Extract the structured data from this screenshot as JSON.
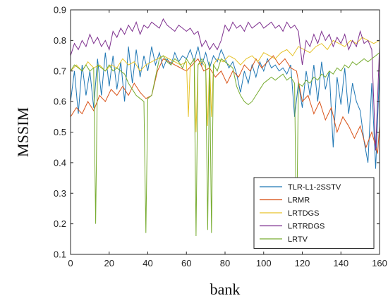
{
  "chart_data": {
    "type": "line",
    "xlabel": "bank",
    "ylabel": "MSSIM",
    "xlim": [
      0,
      160
    ],
    "ylim": [
      0.1,
      0.9
    ],
    "xticks": [
      0,
      20,
      40,
      60,
      80,
      100,
      120,
      140,
      160
    ],
    "yticks": [
      0.1,
      0.2,
      0.3,
      0.4,
      0.5,
      0.6,
      0.7,
      0.8,
      0.9
    ],
    "grid": false,
    "legend_position": "bottom-right",
    "series": [
      {
        "name": "TLR-L1-2SSTV",
        "color": "#1f77b4",
        "x": [
          0,
          2,
          4,
          6,
          8,
          10,
          12,
          14,
          16,
          18,
          20,
          22,
          24,
          26,
          28,
          30,
          32,
          34,
          36,
          38,
          40,
          42,
          44,
          46,
          48,
          50,
          52,
          54,
          56,
          58,
          60,
          62,
          64,
          66,
          68,
          70,
          72,
          74,
          76,
          78,
          80,
          82,
          84,
          86,
          88,
          90,
          92,
          94,
          96,
          98,
          100,
          102,
          104,
          106,
          108,
          110,
          112,
          114,
          116,
          118,
          120,
          122,
          124,
          126,
          128,
          130,
          132,
          134,
          136,
          138,
          140,
          142,
          144,
          146,
          148,
          150,
          152,
          154,
          156,
          158,
          160
        ],
        "values": [
          0.6,
          0.7,
          0.56,
          0.72,
          0.62,
          0.7,
          0.58,
          0.74,
          0.62,
          0.76,
          0.65,
          0.75,
          0.64,
          0.73,
          0.6,
          0.78,
          0.66,
          0.77,
          0.68,
          0.75,
          0.7,
          0.78,
          0.72,
          0.76,
          0.71,
          0.74,
          0.72,
          0.76,
          0.73,
          0.75,
          0.74,
          0.77,
          0.73,
          0.78,
          0.72,
          0.76,
          0.71,
          0.75,
          0.73,
          0.77,
          0.74,
          0.71,
          0.73,
          0.69,
          0.63,
          0.7,
          0.66,
          0.72,
          0.68,
          0.73,
          0.7,
          0.74,
          0.71,
          0.72,
          0.7,
          0.71,
          0.69,
          0.72,
          0.55,
          0.66,
          0.58,
          0.7,
          0.62,
          0.72,
          0.6,
          0.73,
          0.64,
          0.7,
          0.45,
          0.68,
          0.59,
          0.71,
          0.56,
          0.66,
          0.6,
          0.57,
          0.47,
          0.4,
          0.66,
          0.38,
          0.7
        ]
      },
      {
        "name": "LRMR",
        "color": "#d9541a",
        "x": [
          0,
          3,
          6,
          9,
          12,
          15,
          18,
          21,
          24,
          27,
          30,
          33,
          36,
          39,
          42,
          45,
          48,
          51,
          54,
          57,
          60,
          63,
          66,
          69,
          72,
          75,
          78,
          81,
          84,
          87,
          90,
          93,
          96,
          99,
          102,
          105,
          108,
          111,
          114,
          117,
          120,
          123,
          126,
          129,
          132,
          135,
          138,
          141,
          144,
          147,
          150,
          153,
          156,
          159,
          160
        ],
        "values": [
          0.55,
          0.58,
          0.56,
          0.6,
          0.57,
          0.62,
          0.6,
          0.64,
          0.62,
          0.65,
          0.62,
          0.66,
          0.63,
          0.61,
          0.62,
          0.7,
          0.74,
          0.73,
          0.72,
          0.71,
          0.7,
          0.72,
          0.74,
          0.7,
          0.71,
          0.68,
          0.7,
          0.66,
          0.7,
          0.68,
          0.72,
          0.7,
          0.74,
          0.71,
          0.73,
          0.75,
          0.72,
          0.74,
          0.71,
          0.7,
          0.6,
          0.62,
          0.56,
          0.6,
          0.54,
          0.58,
          0.5,
          0.55,
          0.52,
          0.48,
          0.52,
          0.45,
          0.5,
          0.43,
          0.52
        ]
      },
      {
        "name": "LRTDGS",
        "color": "#e6c229",
        "x": [
          0,
          3,
          6,
          9,
          12,
          15,
          18,
          21,
          24,
          27,
          30,
          33,
          36,
          39,
          42,
          45,
          48,
          51,
          54,
          57,
          60,
          61,
          62,
          64,
          65,
          66,
          68,
          70,
          71,
          72,
          73,
          74,
          76,
          79,
          82,
          85,
          88,
          91,
          94,
          97,
          100,
          103,
          106,
          109,
          112,
          115,
          118,
          121,
          124,
          127,
          130,
          133,
          136,
          139,
          142,
          145,
          148,
          151,
          154,
          157,
          160
        ],
        "values": [
          0.7,
          0.72,
          0.7,
          0.73,
          0.71,
          0.72,
          0.7,
          0.72,
          0.71,
          0.74,
          0.72,
          0.73,
          0.7,
          0.72,
          0.73,
          0.74,
          0.75,
          0.74,
          0.73,
          0.72,
          0.73,
          0.55,
          0.72,
          0.74,
          0.5,
          0.72,
          0.73,
          0.71,
          0.52,
          0.73,
          0.55,
          0.72,
          0.74,
          0.73,
          0.75,
          0.74,
          0.72,
          0.74,
          0.75,
          0.73,
          0.76,
          0.75,
          0.74,
          0.76,
          0.77,
          0.75,
          0.78,
          0.77,
          0.76,
          0.78,
          0.79,
          0.77,
          0.8,
          0.79,
          0.78,
          0.8,
          0.79,
          0.81,
          0.8,
          0.79,
          0.8
        ]
      },
      {
        "name": "LRTRDGS",
        "color": "#7e2f8e",
        "x": [
          0,
          2,
          4,
          6,
          8,
          10,
          12,
          14,
          16,
          18,
          20,
          22,
          24,
          26,
          28,
          30,
          32,
          34,
          36,
          38,
          40,
          42,
          44,
          46,
          48,
          50,
          52,
          54,
          56,
          58,
          60,
          62,
          64,
          66,
          68,
          70,
          72,
          74,
          76,
          78,
          80,
          82,
          84,
          86,
          88,
          90,
          92,
          94,
          96,
          98,
          100,
          102,
          104,
          106,
          108,
          110,
          112,
          114,
          116,
          118,
          120,
          122,
          124,
          126,
          128,
          130,
          132,
          134,
          136,
          138,
          140,
          142,
          144,
          146,
          148,
          150,
          152,
          154,
          156,
          158,
          160
        ],
        "values": [
          0.75,
          0.79,
          0.77,
          0.8,
          0.78,
          0.82,
          0.79,
          0.81,
          0.78,
          0.8,
          0.77,
          0.83,
          0.81,
          0.84,
          0.82,
          0.85,
          0.83,
          0.86,
          0.82,
          0.85,
          0.84,
          0.86,
          0.85,
          0.84,
          0.87,
          0.85,
          0.84,
          0.83,
          0.85,
          0.84,
          0.83,
          0.84,
          0.82,
          0.83,
          0.78,
          0.8,
          0.77,
          0.79,
          0.77,
          0.8,
          0.85,
          0.83,
          0.86,
          0.84,
          0.85,
          0.83,
          0.86,
          0.84,
          0.85,
          0.86,
          0.84,
          0.85,
          0.86,
          0.84,
          0.85,
          0.83,
          0.86,
          0.84,
          0.85,
          0.83,
          0.72,
          0.8,
          0.78,
          0.82,
          0.79,
          0.83,
          0.8,
          0.82,
          0.78,
          0.81,
          0.79,
          0.82,
          0.77,
          0.8,
          0.78,
          0.83,
          0.79,
          0.8,
          0.77,
          0.44,
          0.78
        ]
      },
      {
        "name": "LRTV",
        "color": "#77ac30",
        "x": [
          0,
          2,
          4,
          6,
          8,
          10,
          12,
          13,
          14,
          16,
          18,
          20,
          22,
          24,
          26,
          28,
          30,
          32,
          34,
          36,
          38,
          39,
          40,
          42,
          44,
          46,
          48,
          50,
          52,
          54,
          56,
          58,
          60,
          62,
          64,
          65,
          66,
          68,
          70,
          71,
          72,
          73,
          74,
          76,
          78,
          80,
          82,
          84,
          86,
          88,
          90,
          92,
          94,
          96,
          98,
          100,
          102,
          104,
          106,
          108,
          110,
          112,
          114,
          116,
          117,
          118,
          120,
          122,
          124,
          126,
          128,
          130,
          132,
          134,
          136,
          138,
          140,
          142,
          144,
          146,
          148,
          150,
          152,
          154,
          156,
          158,
          160
        ],
        "values": [
          0.7,
          0.72,
          0.71,
          0.7,
          0.72,
          0.7,
          0.71,
          0.2,
          0.72,
          0.71,
          0.7,
          0.72,
          0.7,
          0.71,
          0.7,
          0.69,
          0.66,
          0.64,
          0.62,
          0.61,
          0.6,
          0.17,
          0.61,
          0.62,
          0.68,
          0.74,
          0.75,
          0.73,
          0.72,
          0.74,
          0.73,
          0.71,
          0.74,
          0.72,
          0.74,
          0.16,
          0.72,
          0.74,
          0.72,
          0.18,
          0.73,
          0.17,
          0.72,
          0.7,
          0.74,
          0.73,
          0.72,
          0.71,
          0.65,
          0.62,
          0.6,
          0.59,
          0.6,
          0.62,
          0.64,
          0.66,
          0.67,
          0.68,
          0.67,
          0.68,
          0.69,
          0.67,
          0.68,
          0.66,
          0.13,
          0.66,
          0.65,
          0.67,
          0.66,
          0.68,
          0.67,
          0.69,
          0.68,
          0.7,
          0.69,
          0.71,
          0.7,
          0.72,
          0.71,
          0.73,
          0.72,
          0.73,
          0.74,
          0.73,
          0.74,
          0.75,
          0.76
        ]
      }
    ]
  }
}
